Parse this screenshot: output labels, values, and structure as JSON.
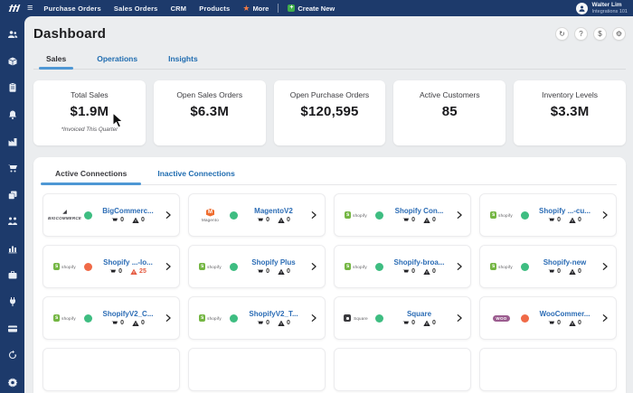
{
  "navbar": {
    "menu": [
      "Purchase Orders",
      "Sales Orders",
      "CRM",
      "Products"
    ],
    "more_label": "More",
    "create_new_label": "Create New",
    "user": {
      "name": "Walter Lim",
      "org": "Integrations 101"
    }
  },
  "sidebar": {
    "top_icons": [
      "users",
      "package",
      "clipboard",
      "bell",
      "factory",
      "cart",
      "copy",
      "org-chart",
      "bar-chart",
      "briefcase",
      "plug",
      "credit-card"
    ],
    "bottom_icons": [
      "sync",
      "gear"
    ]
  },
  "header": {
    "title": "Dashboard",
    "actions": [
      {
        "name": "refresh",
        "glyph": "↻"
      },
      {
        "name": "help",
        "glyph": "?"
      },
      {
        "name": "billing",
        "glyph": "$"
      },
      {
        "name": "settings",
        "glyph": "⚙"
      }
    ]
  },
  "main_tabs": [
    {
      "label": "Sales",
      "active": true
    },
    {
      "label": "Operations",
      "active": false
    },
    {
      "label": "Insights",
      "active": false
    }
  ],
  "kpis": [
    {
      "label": "Total Sales",
      "value": "$1.9M",
      "note": "*Invoiced This Quarter"
    },
    {
      "label": "Open Sales Orders",
      "value": "$6.3M",
      "note": ""
    },
    {
      "label": "Open Purchase Orders",
      "value": "$120,595",
      "note": ""
    },
    {
      "label": "Active Customers",
      "value": "85",
      "note": ""
    },
    {
      "label": "Inventory Levels",
      "value": "$3.3M",
      "note": ""
    }
  ],
  "connections": {
    "tabs": [
      {
        "label": "Active Connections",
        "active": true
      },
      {
        "label": "Inactive Connections",
        "active": false
      }
    ],
    "logos": {
      "bigcommerce": "BIGCOMMERCE",
      "magento": "Magento",
      "shopify": "shopify",
      "square": "Square",
      "woocommerce": "WOOCOMMERCE"
    },
    "cards": [
      {
        "title": "BigCommerc...",
        "logo": "bigcommerce",
        "status": "green",
        "orders": "0",
        "alerts": "0",
        "alert_level": "normal"
      },
      {
        "title": "MagentoV2",
        "logo": "magento",
        "status": "green",
        "orders": "0",
        "alerts": "0",
        "alert_level": "normal"
      },
      {
        "title": "Shopify Con...",
        "logo": "shopify",
        "status": "green",
        "orders": "0",
        "alerts": "0",
        "alert_level": "normal"
      },
      {
        "title": "Shopify ...-cu...",
        "logo": "shopify",
        "status": "green",
        "orders": "0",
        "alerts": "0",
        "alert_level": "normal"
      },
      {
        "title": "Shopify ...-lo...",
        "logo": "shopify",
        "status": "orange",
        "orders": "0",
        "alerts": "25",
        "alert_level": "warning"
      },
      {
        "title": "Shopify Plus",
        "logo": "shopify",
        "status": "green",
        "orders": "0",
        "alerts": "0",
        "alert_level": "normal"
      },
      {
        "title": "Shopify-broa...",
        "logo": "shopify",
        "status": "green",
        "orders": "0",
        "alerts": "0",
        "alert_level": "normal"
      },
      {
        "title": "Shopify-new",
        "logo": "shopify",
        "status": "green",
        "orders": "0",
        "alerts": "0",
        "alert_level": "normal"
      },
      {
        "title": "ShopifyV2_C...",
        "logo": "shopify",
        "status": "green",
        "orders": "0",
        "alerts": "0",
        "alert_level": "normal"
      },
      {
        "title": "ShopifyV2_T...",
        "logo": "shopify",
        "status": "green",
        "orders": "0",
        "alerts": "0",
        "alert_level": "normal"
      },
      {
        "title": "Square",
        "logo": "square",
        "status": "green",
        "orders": "0",
        "alerts": "0",
        "alert_level": "normal"
      },
      {
        "title": "WooCommer...",
        "logo": "woocommerce",
        "status": "orange",
        "orders": "0",
        "alerts": "0",
        "alert_level": "normal"
      }
    ]
  },
  "colors": {
    "navy": "#1d3a6b",
    "accent_blue": "#1f6cb0",
    "link_blue": "#2b6cb5",
    "tab_underline": "#4e97d4",
    "status_green": "#3ebd81",
    "status_orange": "#f06a47",
    "alert_red": "#e4593f",
    "create_green": "#3fae4a",
    "star_orange": "#ef7a45"
  }
}
